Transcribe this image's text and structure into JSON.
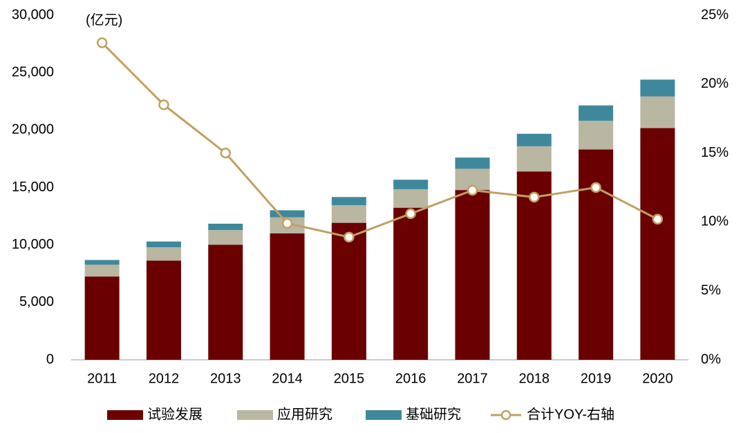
{
  "chart_data": {
    "type": "bar",
    "stacked": true,
    "annotation": "(亿元)",
    "categories": [
      "2011",
      "2012",
      "2013",
      "2014",
      "2015",
      "2016",
      "2017",
      "2018",
      "2019",
      "2020"
    ],
    "series": [
      {
        "name": "试验发展",
        "color": "#6b0000",
        "values": [
          7247,
          8638,
          10023,
          11004,
          11925,
          13243,
          14781,
          16397,
          18310,
          20169
        ]
      },
      {
        "name": "应用研究",
        "color": "#b9b6a2",
        "values": [
          1028,
          1162,
          1269,
          1399,
          1529,
          1611,
          1849,
          2191,
          2499,
          2757
        ]
      },
      {
        "name": "基础研究",
        "color": "#3f889c",
        "values": [
          412,
          499,
          555,
          614,
          716,
          823,
          976,
          1090,
          1336,
          1467
        ]
      },
      {
        "name": "合计YOY-右轴",
        "type": "line",
        "axis": "y2",
        "color": "#c0a062",
        "values": [
          23.0,
          18.5,
          15.0,
          9.9,
          8.9,
          10.6,
          12.3,
          11.8,
          12.5,
          10.2
        ]
      }
    ],
    "ylim": [
      0,
      30000
    ],
    "yticks": [
      0,
      {
        "value": 5000,
        "label": "5,000"
      },
      {
        "value": 10000,
        "label": "10,000"
      },
      {
        "value": 15000,
        "label": "15,000"
      },
      {
        "value": 20000,
        "label": "20,000"
      },
      {
        "value": 25000,
        "label": "25,000"
      },
      {
        "value": 30000,
        "label": "30,000"
      }
    ],
    "y2lim": [
      0,
      25
    ],
    "y2ticks": [
      {
        "value": 0,
        "label": "0%"
      },
      {
        "value": 5,
        "label": "5%"
      },
      {
        "value": 10,
        "label": "10%"
      },
      {
        "value": 15,
        "label": "15%"
      },
      {
        "value": 20,
        "label": "20%"
      },
      {
        "value": 25,
        "label": "25%"
      }
    ],
    "legend": "bottom"
  }
}
